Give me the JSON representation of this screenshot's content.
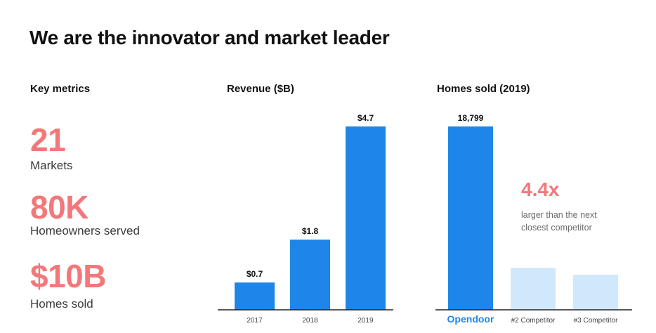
{
  "title": "We are the innovator and market leader",
  "key_metrics": {
    "heading": "Key metrics",
    "items": [
      {
        "value": "21",
        "label": "Markets"
      },
      {
        "value": "80K",
        "label": "Homeowners served"
      },
      {
        "value": "$10B",
        "label": "Homes sold"
      }
    ],
    "accent_color": "#f2787b"
  },
  "callout": {
    "value": "4.4x",
    "text_line1": "larger than the next",
    "text_line2": "closest competitor"
  },
  "colors": {
    "primary_bar": "#1e86e8",
    "competitor_bar": "#d0e8fb",
    "axis": "#222222"
  },
  "chart_data": [
    {
      "type": "bar",
      "title": "Revenue ($B)",
      "categories": [
        "2017",
        "2018",
        "2019"
      ],
      "values": [
        0.7,
        1.8,
        4.7
      ],
      "data_labels": [
        "$0.7",
        "$1.8",
        "$4.7"
      ],
      "xlabel": "",
      "ylabel": "",
      "ylim": [
        0,
        4.7
      ]
    },
    {
      "type": "bar",
      "title": "Homes sold (2019)",
      "categories": [
        "Opendoor",
        "#2 Competitor",
        "#3 Competitor"
      ],
      "values": [
        18799,
        4300,
        3600
      ],
      "data_labels": [
        "18,799",
        "",
        ""
      ],
      "xlabel": "",
      "ylabel": "",
      "ylim": [
        0,
        18799
      ]
    }
  ]
}
